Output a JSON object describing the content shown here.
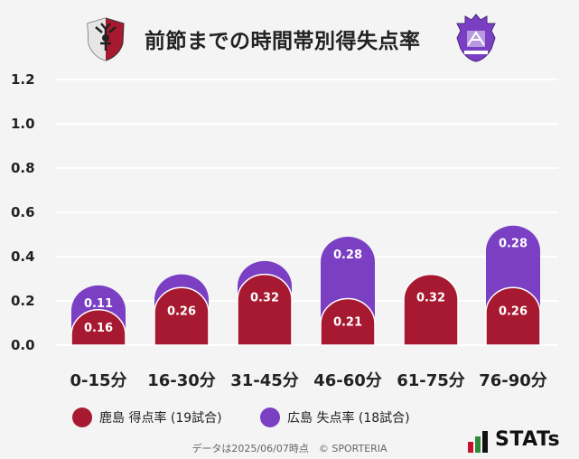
{
  "header": {
    "title": "前節までの時間帯別得失点率"
  },
  "chart_data": {
    "type": "bar",
    "title": "前節までの時間帯別得失点率",
    "categories": [
      "0-15分",
      "16-30分",
      "31-45分",
      "46-60分",
      "61-75分",
      "76-90分"
    ],
    "series": [
      {
        "name": "鹿島 得点率 (19試合)",
        "values": [
          0.16,
          0.26,
          0.32,
          0.21,
          0.32,
          0.26
        ],
        "color": "#a71930",
        "labels": [
          "0.16",
          "0.26",
          "0.32",
          "0.21",
          "0.32",
          "0.26"
        ]
      },
      {
        "name": "広島 失点率 (18試合)",
        "values": [
          0.11,
          0.06,
          0.06,
          0.28,
          0.0,
          0.28
        ],
        "color": "#7b3fc4",
        "labels": [
          "0.11",
          "",
          "",
          "0.28",
          "",
          "0.28"
        ]
      }
    ],
    "yticks": [
      "0.0",
      "0.2",
      "0.4",
      "0.6",
      "0.8",
      "1.0",
      "1.2"
    ],
    "ylim": [
      0,
      1.2
    ],
    "grid": true,
    "legend": "bottom"
  },
  "footnote": "データは2025/06/07時点　© SPORTERIA",
  "brand": {
    "stats_text": "STATs",
    "colors": {
      "kashima": "#a71930",
      "hiroshima": "#7b3fc4"
    }
  }
}
